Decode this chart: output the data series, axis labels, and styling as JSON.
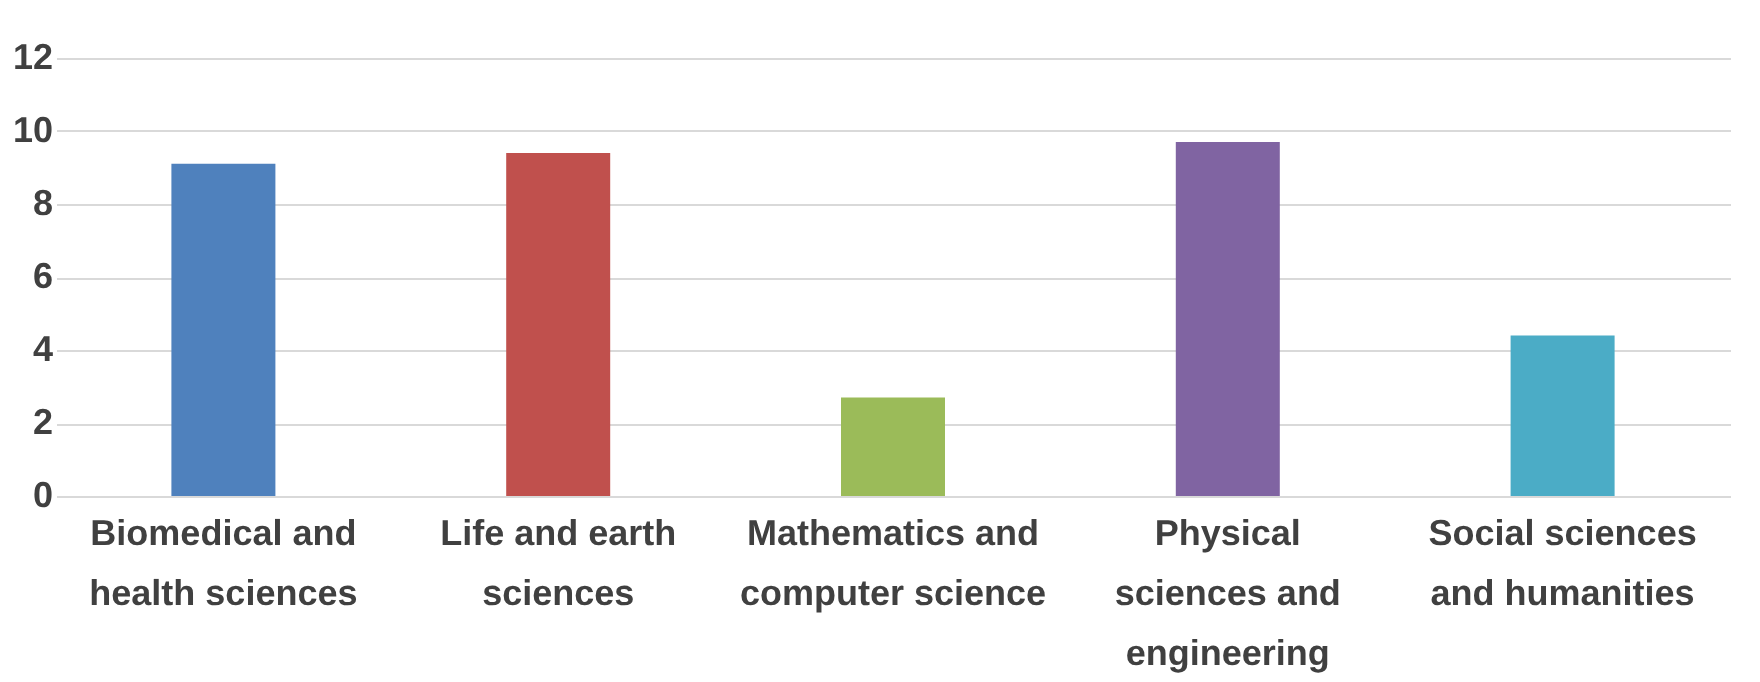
{
  "chart_data": {
    "type": "bar",
    "categories": [
      "Biomedical and health sciences",
      "Life and earth sciences",
      "Mathematics and computer science",
      "Physical sciences and engineering",
      "Social sciences and humanities"
    ],
    "values": [
      9.1,
      9.4,
      2.7,
      9.7,
      4.4
    ],
    "colors": [
      "#4f81bd",
      "#c0504d",
      "#9bbb59",
      "#8064a2",
      "#4bacc6"
    ],
    "ylim": [
      0,
      12
    ],
    "yticks": [
      0,
      2,
      4,
      6,
      8,
      10,
      12
    ],
    "grid": "y"
  }
}
